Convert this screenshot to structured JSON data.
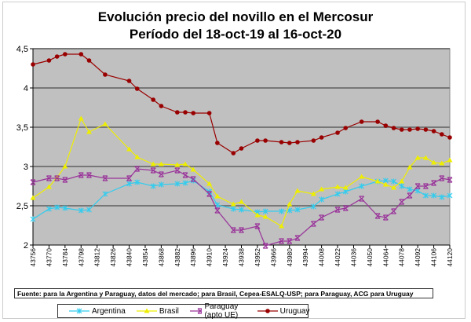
{
  "chart_data": {
    "type": "line",
    "title": "Evolución precio del novillo en el Mercosur",
    "subtitle": "Período del 18-oct-19 al 16-oct-20",
    "xlabel": "",
    "ylabel": "",
    "ylim": [
      2,
      4.5
    ],
    "yticks": [
      "2",
      "2,5",
      "3",
      "3,5",
      "4",
      "4,5"
    ],
    "ytick_values": [
      2,
      2.5,
      3,
      3.5,
      4,
      4.5
    ],
    "xlim": [
      43756,
      44120
    ],
    "xticks": [
      "43756",
      "43770",
      "43784",
      "43798",
      "43812",
      "43826",
      "43840",
      "43854",
      "43868",
      "43882",
      "43896",
      "43910",
      "43924",
      "43938",
      "43952",
      "43966",
      "43980",
      "43994",
      "44008",
      "44022",
      "44036",
      "44050",
      "44064",
      "44078",
      "44092",
      "44106",
      "44120"
    ],
    "grid": true,
    "legend_position": "bottom",
    "x": [
      43756,
      43770,
      43777,
      43784,
      43798,
      43805,
      43819,
      43840,
      43847,
      43861,
      43868,
      43882,
      43889,
      43896,
      43910,
      43917,
      43931,
      43938,
      43952,
      43959,
      43973,
      43980,
      43987,
      44001,
      44008,
      44022,
      44029,
      44043,
      44057,
      44064,
      44071,
      44078,
      44085,
      44092,
      44099,
      44106,
      44113,
      44120
    ],
    "series": [
      {
        "name": "Argentina",
        "color": "#33ccee",
        "marker": "star",
        "values": [
          2.33,
          2.46,
          2.48,
          2.47,
          2.44,
          2.45,
          2.65,
          2.78,
          2.8,
          2.75,
          2.77,
          2.78,
          2.79,
          2.82,
          2.68,
          2.51,
          2.46,
          2.45,
          2.42,
          2.43,
          2.43,
          2.44,
          2.45,
          2.49,
          2.58,
          2.65,
          2.68,
          2.75,
          2.81,
          2.82,
          2.81,
          2.75,
          2.71,
          2.69,
          2.63,
          2.63,
          2.61,
          2.63
        ]
      },
      {
        "name": "Brasil",
        "color": "#eeee00",
        "marker": "triangle",
        "values": [
          2.6,
          2.74,
          2.86,
          3.0,
          3.61,
          3.44,
          3.54,
          3.22,
          3.12,
          3.03,
          3.03,
          3.02,
          3.03,
          2.96,
          2.78,
          2.62,
          2.52,
          2.55,
          2.38,
          2.36,
          2.24,
          2.52,
          2.69,
          2.65,
          2.71,
          2.74,
          2.73,
          2.87,
          2.81,
          2.77,
          2.73,
          2.81,
          2.99,
          3.11,
          3.11,
          3.05,
          3.04,
          3.08
        ]
      },
      {
        "name": "Paraguay (apto UE)",
        "color": "#993399",
        "marker": "x",
        "values": [
          2.8,
          2.85,
          2.85,
          2.83,
          2.89,
          2.89,
          2.85,
          2.85,
          2.97,
          2.95,
          2.9,
          2.95,
          2.89,
          2.84,
          2.65,
          2.44,
          2.19,
          2.19,
          2.24,
          1.99,
          2.05,
          2.05,
          2.09,
          2.27,
          2.35,
          2.45,
          2.47,
          2.59,
          2.37,
          2.35,
          2.43,
          2.55,
          2.63,
          2.75,
          2.75,
          2.79,
          2.85,
          2.83
        ]
      },
      {
        "name": "Uruguay",
        "color": "#990000",
        "marker": "circle",
        "values": [
          4.3,
          4.35,
          4.4,
          4.43,
          4.43,
          4.35,
          4.17,
          4.09,
          3.99,
          3.85,
          3.77,
          3.69,
          3.69,
          3.68,
          3.68,
          3.3,
          3.17,
          3.23,
          3.33,
          3.33,
          3.31,
          3.3,
          3.31,
          3.33,
          3.37,
          3.43,
          3.49,
          3.57,
          3.57,
          3.52,
          3.49,
          3.47,
          3.47,
          3.48,
          3.47,
          3.45,
          3.41,
          3.37
        ]
      }
    ],
    "source": "Fuente: para la Argentina y Paraguay, datos del mercado; para Brasil, Cepea-ESALQ-USP; para Paraguay, ACG para Uruguay",
    "plot_background": "#c0c0c0"
  }
}
